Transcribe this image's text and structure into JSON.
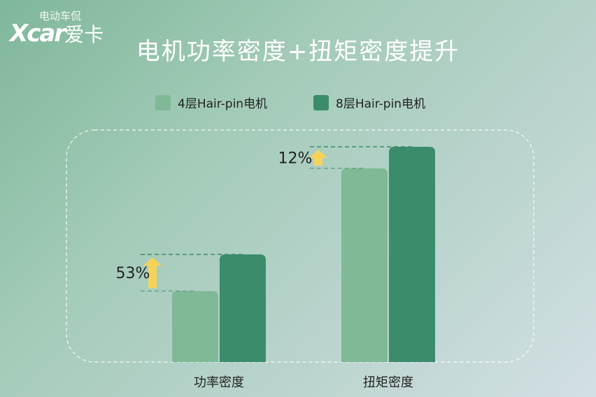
{
  "watermark": {
    "line1": "电动车侃",
    "brand": "Xcar",
    "brand_cn": "爱卡"
  },
  "chart_data": {
    "type": "bar",
    "title": "电机功率密度+扭矩密度提升",
    "categories": [
      "功率密度",
      "扭矩密度"
    ],
    "series": [
      {
        "name": "4层Hair-pin电机",
        "values": [
          33,
          90
        ],
        "color": "#7fb996"
      },
      {
        "name": "8层Hair-pin电机",
        "values": [
          50,
          100
        ],
        "color": "#3b8c6b"
      }
    ],
    "ylim": [
      0,
      100
    ],
    "annotations": [
      "53%",
      "12%"
    ],
    "arrow_color": "#f5d35a",
    "legend_position": "top",
    "grid": false
  }
}
